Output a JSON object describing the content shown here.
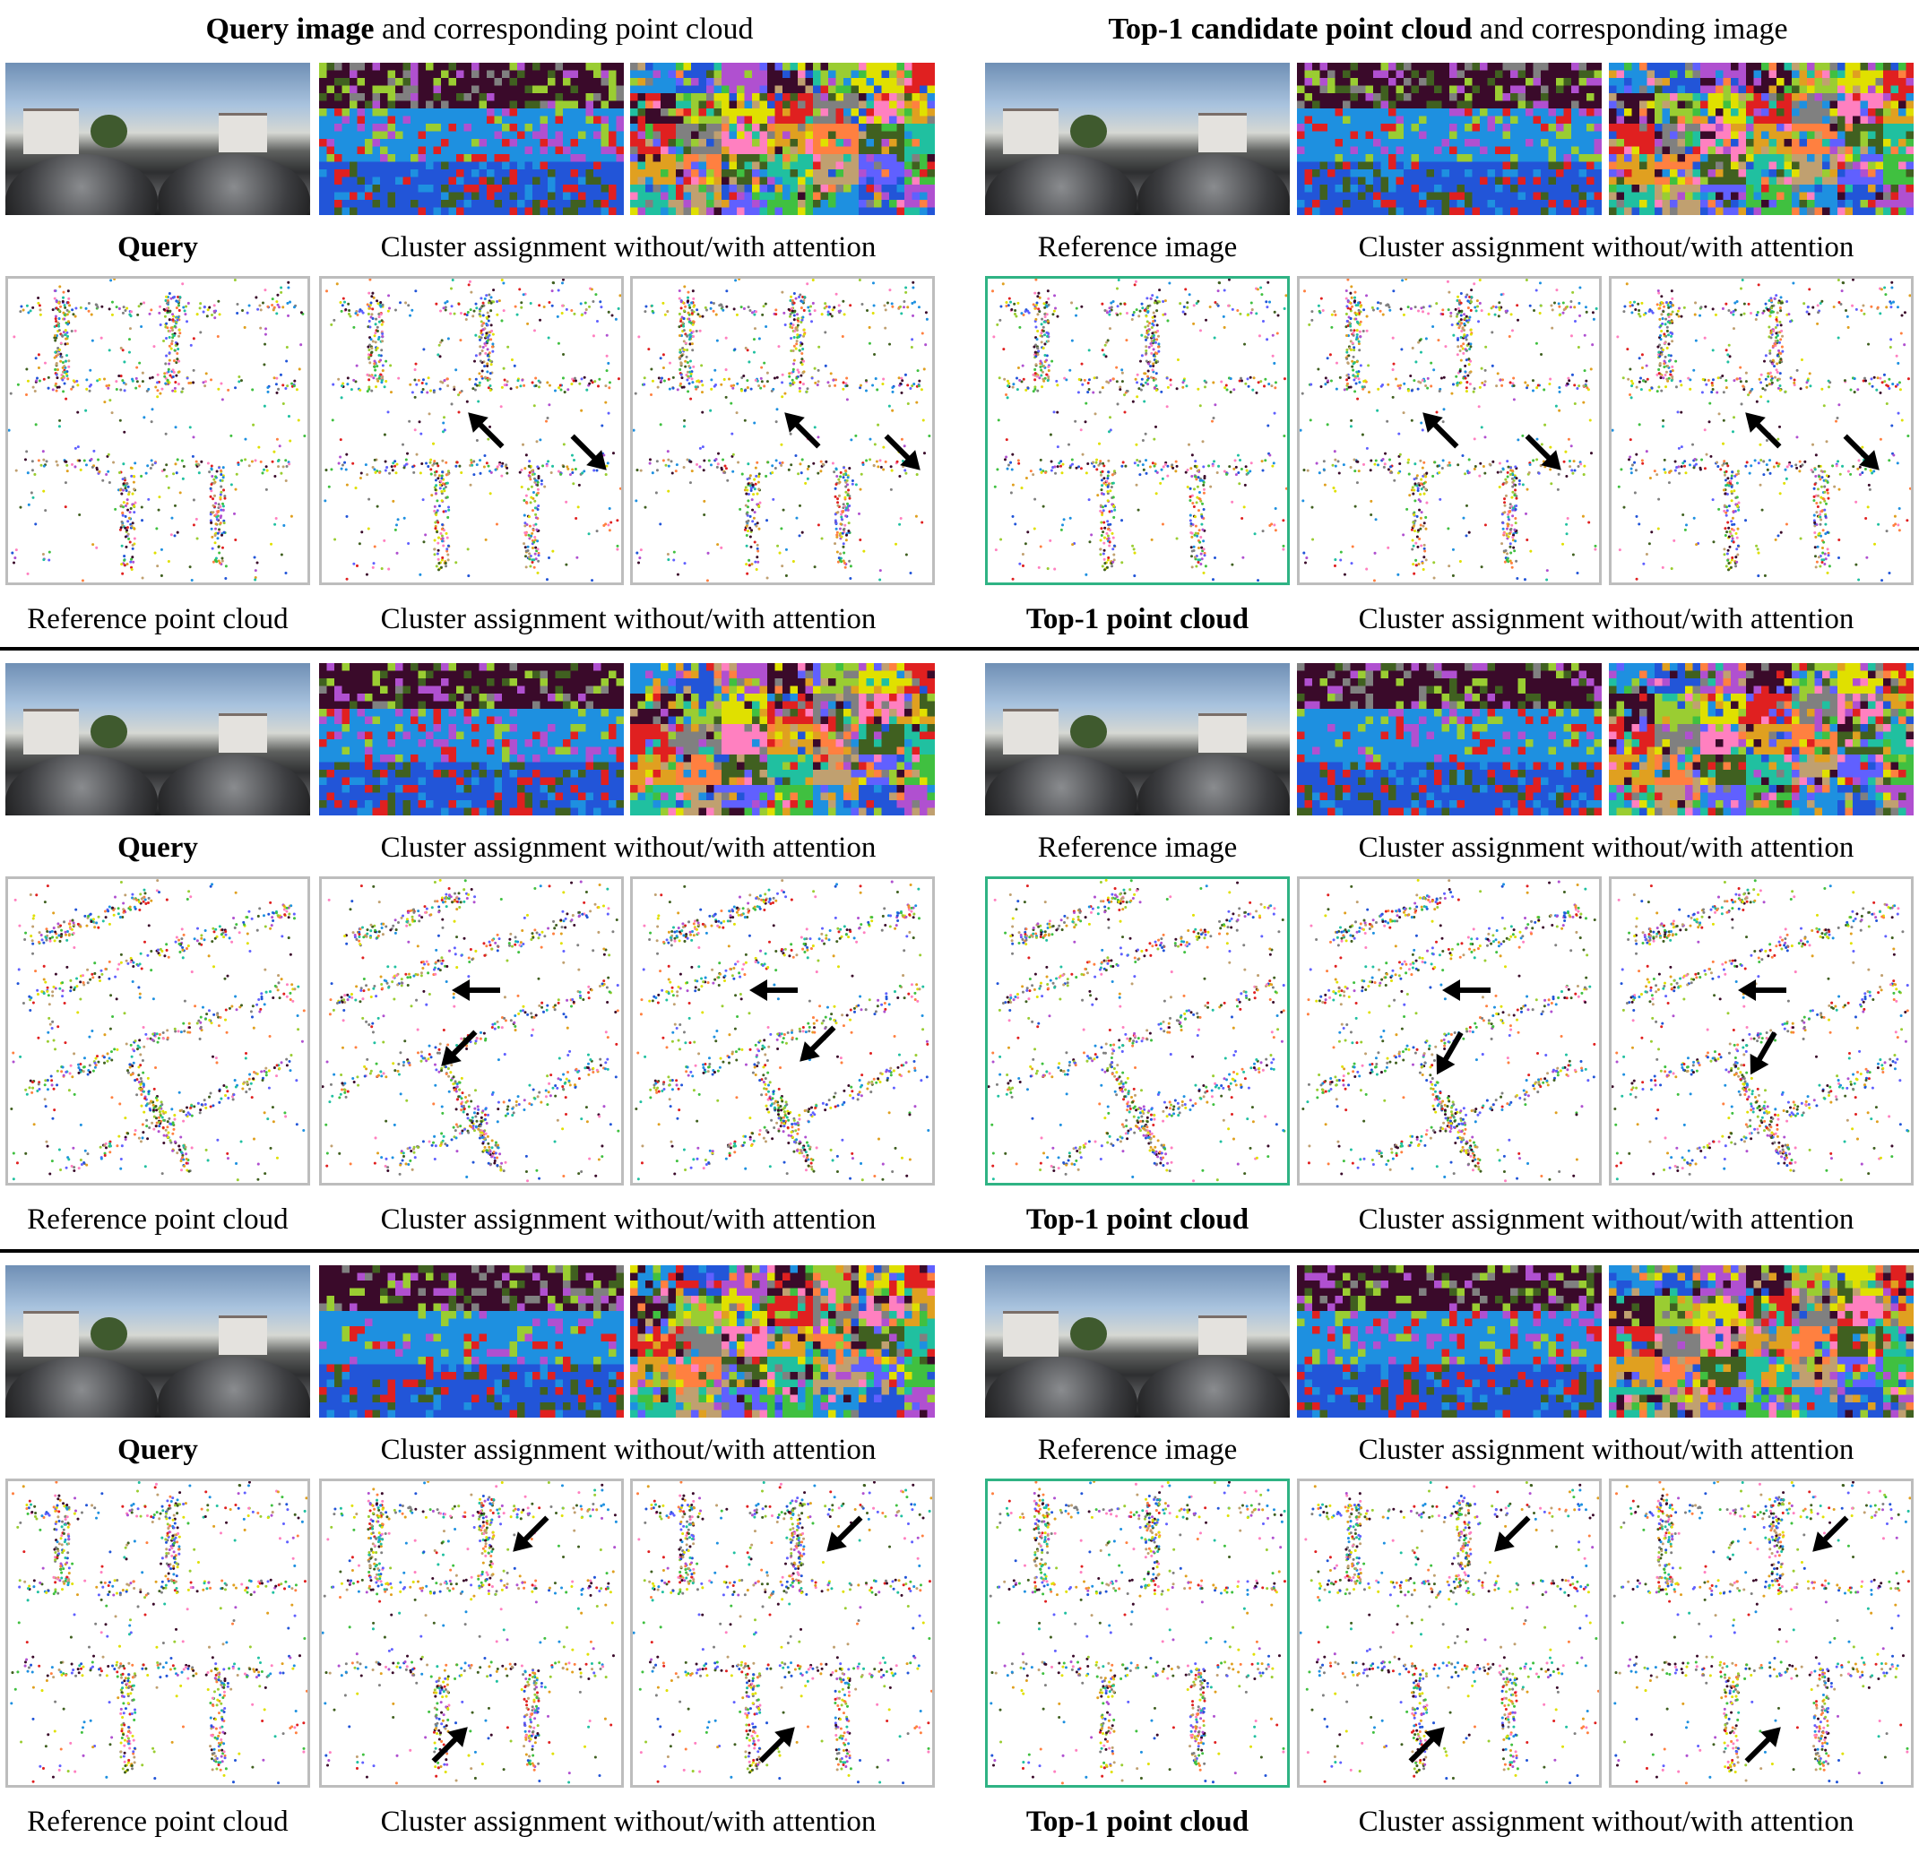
{
  "headers": {
    "left": {
      "bold": "Query image",
      "rest": " and corresponding point cloud"
    },
    "right": {
      "bold": "Top-1 candidate point cloud",
      "rest": " and corresponding image"
    }
  },
  "rows": [
    {
      "captions_img": {
        "query": "Query",
        "cluster_l": "Cluster assignment without/with attention",
        "reference": "Reference image",
        "cluster_r": "Cluster assignment without/with attention"
      },
      "captions_pc": {
        "ref_pc": "Reference point cloud",
        "cluster_l": "Cluster assignment without/with attention",
        "top1": "Top-1 point cloud",
        "cluster_r": "Cluster assignment without/with attention"
      }
    },
    {
      "captions_img": {
        "query": "Query",
        "cluster_l": "Cluster assignment without/with attention",
        "reference": "Reference image",
        "cluster_r": "Cluster assignment without/with attention"
      },
      "captions_pc": {
        "ref_pc": "Reference point cloud",
        "cluster_l": "Cluster assignment without/with attention",
        "top1": "Top-1 point cloud",
        "cluster_r": "Cluster assignment without/with attention"
      }
    },
    {
      "captions_img": {
        "query": "Query",
        "cluster_l": "Cluster assignment without/with attention",
        "reference": "Reference image",
        "cluster_r": "Cluster assignment without/with attention"
      },
      "captions_pc": {
        "ref_pc": "Reference point cloud",
        "cluster_l": "Cluster assignment without/with attention",
        "top1": "Top-1 point cloud",
        "cluster_r": "Cluster assignment without/with attention"
      }
    }
  ],
  "colors": {
    "top1_border": "#2fb384",
    "panel_border": "#bdbdbd",
    "separator": "#000000",
    "cluster_palette": [
      "#1e90e0",
      "#2255d8",
      "#b050d0",
      "#3a0a2a",
      "#9acd32",
      "#e0e000",
      "#e02020",
      "#808080",
      "#ff80c0",
      "#e0a020",
      "#ff8040",
      "#406020",
      "#20c0a0",
      "#c0a070",
      "#6060ff",
      "#40c040"
    ]
  },
  "icons": {
    "arrow": "arrow-icon"
  }
}
